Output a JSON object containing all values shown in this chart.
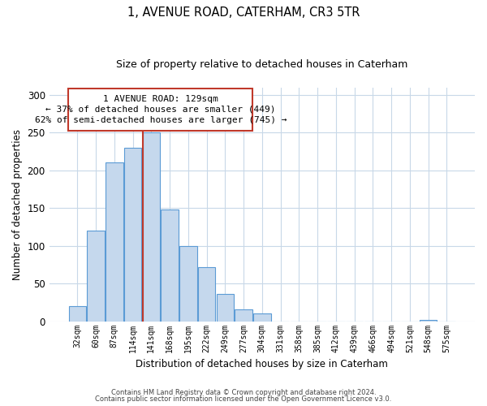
{
  "title": "1, AVENUE ROAD, CATERHAM, CR3 5TR",
  "subtitle": "Size of property relative to detached houses in Caterham",
  "xlabel": "Distribution of detached houses by size in Caterham",
  "ylabel": "Number of detached properties",
  "bin_labels": [
    "32sqm",
    "60sqm",
    "87sqm",
    "114sqm",
    "141sqm",
    "168sqm",
    "195sqm",
    "222sqm",
    "249sqm",
    "277sqm",
    "304sqm",
    "331sqm",
    "358sqm",
    "385sqm",
    "412sqm",
    "439sqm",
    "466sqm",
    "494sqm",
    "521sqm",
    "548sqm",
    "575sqm"
  ],
  "bar_heights": [
    20,
    120,
    210,
    230,
    250,
    148,
    100,
    72,
    36,
    16,
    10,
    0,
    0,
    0,
    0,
    0,
    0,
    0,
    0,
    2,
    0
  ],
  "bar_color": "#c5d8ed",
  "bar_edge_color": "#5b9bd5",
  "marker_color": "#c0392b",
  "annotation_title": "1 AVENUE ROAD: 129sqm",
  "annotation_line1": "← 37% of detached houses are smaller (449)",
  "annotation_line2": "62% of semi-detached houses are larger (745) →",
  "annotation_box_color": "#c0392b",
  "ylim": [
    0,
    310
  ],
  "yticks": [
    0,
    50,
    100,
    150,
    200,
    250,
    300
  ],
  "footnote1": "Contains HM Land Registry data © Crown copyright and database right 2024.",
  "footnote2": "Contains public sector information licensed under the Open Government Licence v3.0.",
  "background_color": "#ffffff",
  "grid_color": "#c8d8e8"
}
